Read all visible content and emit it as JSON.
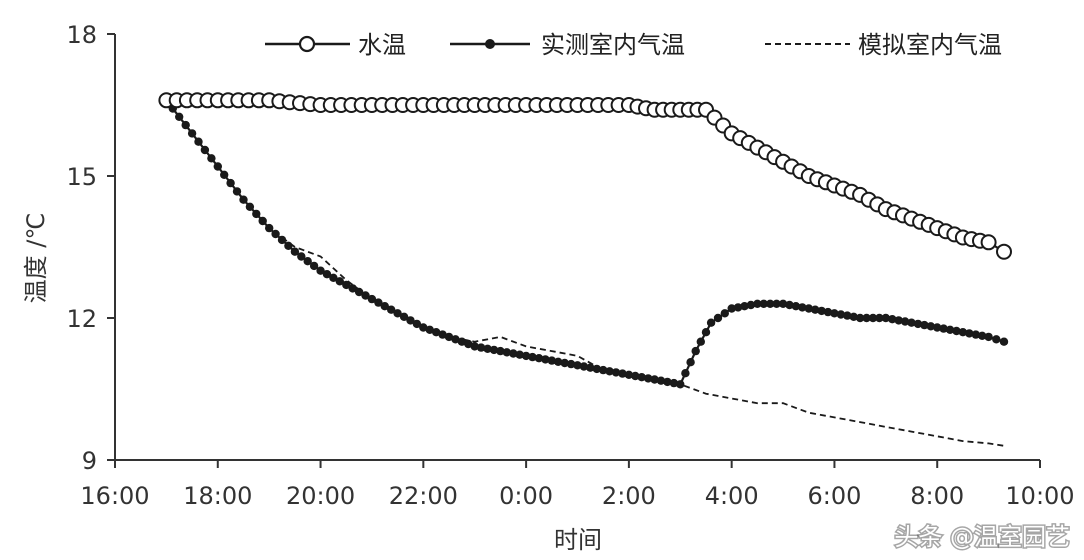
{
  "chart_data": {
    "type": "line",
    "xlabel": "时间",
    "ylabel": "温度 /℃",
    "x_unit": "hour_of_day",
    "xlim": [
      16,
      34
    ],
    "ylim": [
      9,
      18
    ],
    "x_ticks": [
      16,
      18,
      20,
      22,
      24,
      26,
      28,
      30,
      32,
      34
    ],
    "x_tick_labels": [
      "16:00",
      "18:00",
      "20:00",
      "22:00",
      "0:00",
      "2:00",
      "4:00",
      "6:00",
      "8:00",
      "10:00"
    ],
    "y_ticks": [
      9,
      12,
      15,
      18
    ],
    "y_tick_labels": [
      "9",
      "12",
      "15",
      "18"
    ],
    "grid": false,
    "legend_position": "top",
    "series": [
      {
        "name": "水温",
        "style": "line-open-circle",
        "color": "#1a1a1a",
        "x": [
          17.0,
          18.0,
          19.0,
          20.0,
          21.0,
          22.0,
          23.0,
          24.0,
          25.0,
          26.0,
          26.5,
          27.0,
          27.5,
          28.0,
          28.5,
          29.0,
          29.5,
          30.0,
          30.5,
          31.0,
          31.5,
          32.0,
          32.5,
          33.0,
          33.3
        ],
        "y": [
          16.6,
          16.6,
          16.6,
          16.5,
          16.5,
          16.5,
          16.5,
          16.5,
          16.5,
          16.5,
          16.4,
          16.4,
          16.4,
          15.9,
          15.6,
          15.3,
          15.0,
          14.8,
          14.6,
          14.3,
          14.1,
          13.9,
          13.7,
          13.6,
          13.4
        ]
      },
      {
        "name": "实测室内气温",
        "style": "line-filled-dot",
        "color": "#1a1a1a",
        "x": [
          17.0,
          17.5,
          18.0,
          18.5,
          19.0,
          19.5,
          20.0,
          20.5,
          21.0,
          21.5,
          22.0,
          22.5,
          23.0,
          23.5,
          24.0,
          24.5,
          25.0,
          25.5,
          26.0,
          26.5,
          27.0,
          27.3,
          27.6,
          28.0,
          28.5,
          29.0,
          29.5,
          30.0,
          30.5,
          31.0,
          31.5,
          32.0,
          32.5,
          33.0,
          33.3
        ],
        "y": [
          16.6,
          15.9,
          15.2,
          14.5,
          13.9,
          13.4,
          13.0,
          12.7,
          12.4,
          12.1,
          11.8,
          11.6,
          11.4,
          11.3,
          11.2,
          11.1,
          11.0,
          10.9,
          10.8,
          10.7,
          10.6,
          11.3,
          11.9,
          12.2,
          12.3,
          12.3,
          12.2,
          12.1,
          12.0,
          12.0,
          11.9,
          11.8,
          11.7,
          11.6,
          11.5
        ]
      },
      {
        "name": "模拟室内气温",
        "style": "dashed",
        "color": "#1a1a1a",
        "x": [
          17.0,
          17.5,
          18.0,
          18.5,
          19.0,
          19.5,
          20.0,
          20.5,
          21.0,
          21.5,
          22.0,
          22.5,
          23.0,
          23.5,
          24.0,
          24.5,
          25.0,
          25.5,
          26.0,
          26.5,
          27.0,
          27.5,
          28.0,
          28.5,
          29.0,
          29.5,
          30.0,
          30.5,
          31.0,
          31.5,
          32.0,
          32.5,
          33.0,
          33.3
        ],
        "y": [
          16.6,
          15.9,
          15.2,
          14.5,
          13.9,
          13.5,
          13.3,
          12.8,
          12.4,
          12.1,
          11.8,
          11.6,
          11.5,
          11.6,
          11.4,
          11.3,
          11.2,
          10.9,
          10.8,
          10.7,
          10.6,
          10.4,
          10.3,
          10.2,
          10.2,
          10.0,
          9.9,
          9.8,
          9.7,
          9.6,
          9.5,
          9.4,
          9.35,
          9.3
        ]
      }
    ]
  },
  "watermark": "头条 @温室园艺"
}
